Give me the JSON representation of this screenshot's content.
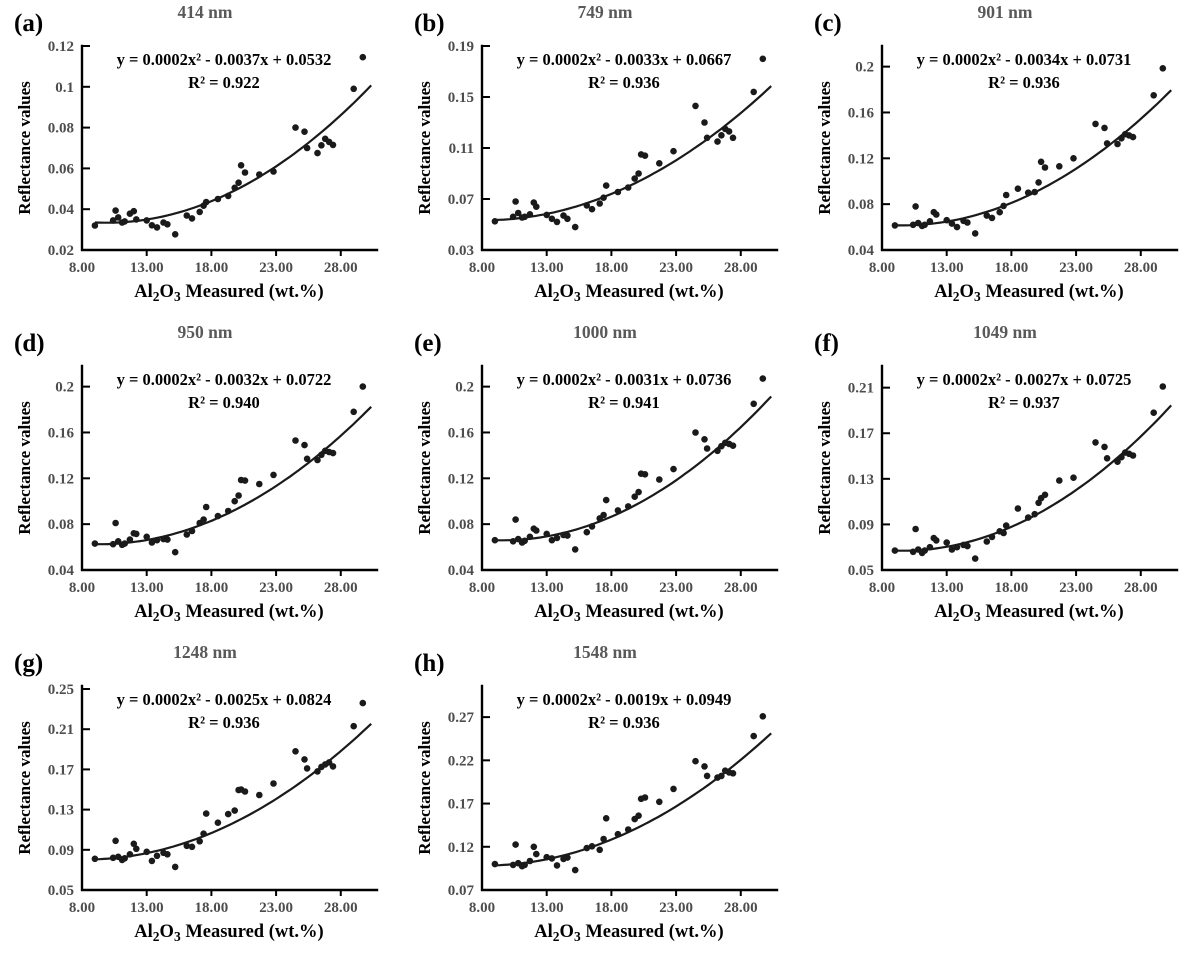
{
  "figure": {
    "background": "#ffffff",
    "axis_color": "#000000",
    "point_color": "#1a1a1a",
    "curve_color": "#1a1a1a",
    "title_color": "#595959",
    "tick_label_color": "#4d4d4d",
    "label_color": "#000000",
    "ylabel": "Reflectance values",
    "xlabel_parts": {
      "pre": "Al",
      "sub1": "2",
      "mid": "O",
      "sub2": "3",
      "post": " Measured (wt.%)"
    },
    "xlim": [
      8,
      30.8
    ],
    "xtick_values": [
      8,
      13,
      18,
      23,
      28
    ],
    "xtick_labels": [
      "8.00",
      "13.00",
      "18.00",
      "23.00",
      "28.00"
    ]
  },
  "chart_data": {
    "type": "scatter",
    "x_shared": [
      9.0,
      10.4,
      10.6,
      10.8,
      11.1,
      11.3,
      11.7,
      12.0,
      12.2,
      13.0,
      13.4,
      13.8,
      14.3,
      14.6,
      15.2,
      16.1,
      16.5,
      17.1,
      17.4,
      17.6,
      18.5,
      19.3,
      19.8,
      20.1,
      20.3,
      20.6,
      21.7,
      22.8,
      24.5,
      25.2,
      25.4,
      26.2,
      26.5,
      26.8,
      27.1,
      27.4,
      29.0,
      29.7
    ],
    "curve_anchor_x": [
      9.0,
      19.75,
      30.4
    ],
    "panels": [
      {
        "id": "a",
        "letter": "(a)",
        "title": "414 nm",
        "equation": "y = 0.0002x² - 0.0037x + 0.0532",
        "r2_label": "R² = 0.922",
        "ymin": 0.02,
        "ytop": 0.12,
        "ytick_values": [
          0.02,
          0.04,
          0.06,
          0.08,
          0.1,
          0.12
        ],
        "ytick_labels": [
          "0.02",
          "0.04",
          "0.06",
          "0.08",
          "0.1",
          "0.12"
        ],
        "curve_anchor_y": [
          0.0335,
          0.049,
          0.101
        ],
        "y": [
          0.032,
          0.0345,
          0.0393,
          0.036,
          0.0335,
          0.034,
          0.0378,
          0.039,
          0.035,
          0.0345,
          0.0321,
          0.0311,
          0.0335,
          0.0326,
          0.0277,
          0.0369,
          0.0355,
          0.0387,
          0.0417,
          0.0435,
          0.045,
          0.0465,
          0.0505,
          0.053,
          0.0615,
          0.058,
          0.057,
          0.0585,
          0.08,
          0.078,
          0.07,
          0.0675,
          0.0713,
          0.0745,
          0.073,
          0.0715,
          0.099,
          0.1145
        ]
      },
      {
        "id": "b",
        "letter": "(b)",
        "title": "749 nm",
        "equation": "y = 0.0002x² - 0.0033x + 0.0667",
        "r2_label": "R² = 0.936",
        "ymin": 0.03,
        "ytop": 0.19,
        "ytick_values": [
          0.03,
          0.07,
          0.11,
          0.15,
          0.19
        ],
        "ytick_labels": [
          "0.03",
          "0.07",
          "0.11",
          "0.15",
          "0.19"
        ],
        "curve_anchor_y": [
          0.0535,
          0.082,
          0.159
        ],
        "y": [
          0.0525,
          0.056,
          0.068,
          0.059,
          0.0555,
          0.056,
          0.058,
          0.0672,
          0.064,
          0.0575,
          0.0545,
          0.052,
          0.057,
          0.0545,
          0.048,
          0.065,
          0.062,
          0.0665,
          0.071,
          0.0805,
          0.0755,
          0.079,
          0.086,
          0.09,
          0.105,
          0.104,
          0.098,
          0.1075,
          0.143,
          0.13,
          0.118,
          0.115,
          0.12,
          0.125,
          0.123,
          0.118,
          0.154,
          0.18
        ]
      },
      {
        "id": "c",
        "letter": "(c)",
        "title": "901 nm",
        "equation": "y = 0.0002x² - 0.0034x + 0.0731",
        "r2_label": "R² = 0.936",
        "ymin": 0.04,
        "ytop": 0.218,
        "ytick_values": [
          0.04,
          0.08,
          0.12,
          0.16,
          0.2
        ],
        "ytick_labels": [
          "0.04",
          "0.08",
          "0.12",
          "0.16",
          "0.2"
        ],
        "curve_anchor_y": [
          0.0615,
          0.09,
          0.18
        ],
        "y": [
          0.0615,
          0.062,
          0.078,
          0.0635,
          0.061,
          0.062,
          0.065,
          0.073,
          0.071,
          0.066,
          0.063,
          0.06,
          0.0655,
          0.064,
          0.0545,
          0.07,
          0.068,
          0.073,
          0.0785,
          0.088,
          0.0935,
          0.09,
          0.0905,
          0.099,
          0.117,
          0.112,
          0.113,
          0.12,
          0.15,
          0.1465,
          0.133,
          0.1325,
          0.1375,
          0.141,
          0.14,
          0.1385,
          0.175,
          0.1985
        ]
      },
      {
        "id": "d",
        "letter": "(d)",
        "title": "950 nm",
        "equation": "y = 0.0002x² - 0.0032x + 0.0722",
        "r2_label": "R² = 0.940",
        "ymin": 0.04,
        "ytop": 0.218,
        "ytick_values": [
          0.04,
          0.08,
          0.12,
          0.16,
          0.2
        ],
        "ytick_labels": [
          "0.04",
          "0.08",
          "0.12",
          "0.16",
          "0.2"
        ],
        "curve_anchor_y": [
          0.0625,
          0.092,
          0.183
        ],
        "y": [
          0.063,
          0.0625,
          0.081,
          0.065,
          0.062,
          0.063,
          0.0665,
          0.072,
          0.0715,
          0.069,
          0.064,
          0.066,
          0.067,
          0.0665,
          0.0555,
          0.071,
          0.074,
          0.081,
          0.084,
          0.095,
          0.087,
          0.0915,
          0.1,
          0.105,
          0.1185,
          0.118,
          0.115,
          0.123,
          0.153,
          0.149,
          0.137,
          0.136,
          0.1405,
          0.144,
          0.143,
          0.142,
          0.178,
          0.2
        ]
      },
      {
        "id": "e",
        "letter": "(e)",
        "title": "1000 nm",
        "equation": "y = 0.0002x² - 0.0031x + 0.0736",
        "r2_label": "R² = 0.941",
        "ymin": 0.04,
        "ytop": 0.218,
        "ytick_values": [
          0.04,
          0.08,
          0.12,
          0.16,
          0.2
        ],
        "ytick_labels": [
          "0.04",
          "0.08",
          "0.12",
          "0.16",
          "0.2"
        ],
        "curve_anchor_y": [
          0.066,
          0.096,
          0.192
        ],
        "y": [
          0.066,
          0.065,
          0.084,
          0.067,
          0.064,
          0.0655,
          0.069,
          0.076,
          0.0745,
          0.0715,
          0.066,
          0.068,
          0.0705,
          0.07,
          0.058,
          0.073,
          0.078,
          0.085,
          0.088,
          0.101,
          0.092,
          0.0955,
          0.104,
          0.108,
          0.124,
          0.1235,
          0.119,
          0.128,
          0.16,
          0.154,
          0.146,
          0.144,
          0.148,
          0.151,
          0.15,
          0.1485,
          0.185,
          0.207
        ]
      },
      {
        "id": "f",
        "letter": "(f)",
        "title": "1049 nm",
        "equation": "y = 0.0002x² - 0.0027x + 0.0725",
        "r2_label": "R² = 0.937",
        "ymin": 0.05,
        "ytop": 0.229,
        "ytick_values": [
          0.05,
          0.09,
          0.13,
          0.17,
          0.21
        ],
        "ytick_labels": [
          "0.05",
          "0.09",
          "0.13",
          "0.17",
          "0.21"
        ],
        "curve_anchor_y": [
          0.067,
          0.0975,
          0.195
        ],
        "y": [
          0.067,
          0.066,
          0.086,
          0.068,
          0.065,
          0.067,
          0.07,
          0.078,
          0.076,
          0.074,
          0.068,
          0.07,
          0.072,
          0.071,
          0.06,
          0.075,
          0.079,
          0.084,
          0.0825,
          0.089,
          0.104,
          0.096,
          0.099,
          0.109,
          0.113,
          0.116,
          0.1285,
          0.131,
          0.162,
          0.158,
          0.148,
          0.145,
          0.149,
          0.153,
          0.152,
          0.1505,
          0.188,
          0.211
        ]
      },
      {
        "id": "g",
        "letter": "(g)",
        "title": "1248 nm",
        "equation": "y = 0.0002x² - 0.0025x + 0.0824",
        "r2_label": "R² = 0.936",
        "ymin": 0.05,
        "ytop": 0.253,
        "ytick_values": [
          0.05,
          0.09,
          0.13,
          0.17,
          0.21,
          0.25
        ],
        "ytick_labels": [
          "0.05",
          "0.09",
          "0.13",
          "0.17",
          "0.21",
          "0.25"
        ],
        "curve_anchor_y": [
          0.0805,
          0.117,
          0.216
        ],
        "y": [
          0.081,
          0.082,
          0.099,
          0.083,
          0.08,
          0.0815,
          0.0855,
          0.096,
          0.091,
          0.088,
          0.079,
          0.084,
          0.087,
          0.0855,
          0.073,
          0.094,
          0.093,
          0.0985,
          0.106,
          0.126,
          0.117,
          0.1255,
          0.129,
          0.1495,
          0.15,
          0.148,
          0.1445,
          0.156,
          0.188,
          0.18,
          0.171,
          0.168,
          0.1725,
          0.175,
          0.177,
          0.173,
          0.213,
          0.236
        ]
      },
      {
        "id": "h",
        "letter": "(h)",
        "title": "1548 nm",
        "equation": "y = 0.0002x² - 0.0019x + 0.0949",
        "r2_label": "R² = 0.936",
        "ymin": 0.07,
        "ytop": 0.306,
        "ytick_values": [
          0.07,
          0.12,
          0.17,
          0.22,
          0.27
        ],
        "ytick_labels": [
          "0.07",
          "0.12",
          "0.17",
          "0.22",
          "0.27"
        ],
        "curve_anchor_y": [
          0.0985,
          0.14,
          0.252
        ],
        "y": [
          0.1,
          0.099,
          0.1225,
          0.101,
          0.0975,
          0.099,
          0.1035,
          0.12,
          0.1115,
          0.108,
          0.1065,
          0.0985,
          0.106,
          0.1075,
          0.093,
          0.1185,
          0.1205,
          0.1165,
          0.129,
          0.153,
          0.1345,
          0.14,
          0.152,
          0.156,
          0.1755,
          0.177,
          0.172,
          0.187,
          0.219,
          0.213,
          0.202,
          0.2,
          0.202,
          0.208,
          0.206,
          0.205,
          0.248,
          0.271
        ]
      }
    ]
  }
}
